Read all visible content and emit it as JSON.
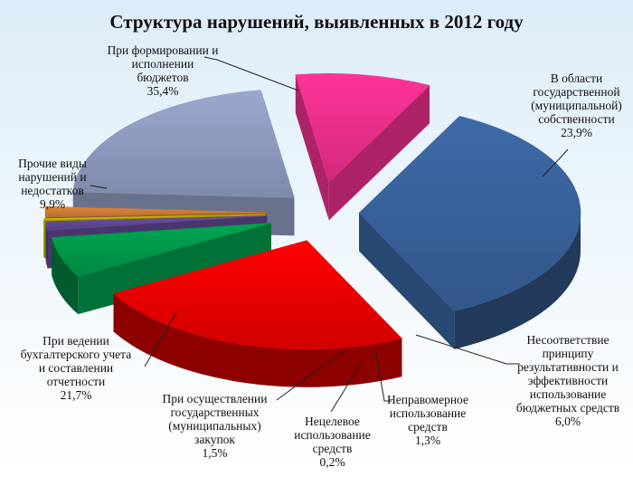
{
  "chart_data": {
    "type": "pie",
    "title": "Структура нарушений, выявленных в 2012 году",
    "slices": [
      {
        "name": "При формировании и исполнении бюджетов",
        "value": 35.4,
        "value_label": "35,4%",
        "color": "#3d6aa8"
      },
      {
        "name": "В области государственной (муниципальной) собственности",
        "value": 23.9,
        "value_label": "23,9%",
        "color": "#ff0000"
      },
      {
        "name": "Несоответствие принципу результативности и эффективности использование бюджетных средств",
        "value": 6.0,
        "value_label": "6,0%",
        "color": "#00a651"
      },
      {
        "name": "Неправомерное использование средств",
        "value": 1.3,
        "value_label": "1,3%",
        "color": "#6a4fa0"
      },
      {
        "name": "Нецелевое использование средств",
        "value": 0.2,
        "value_label": "0,2%",
        "color": "#d9d400"
      },
      {
        "name": "При осуществлении государственных (муниципальных) закупок",
        "value": 1.5,
        "value_label": "1,5%",
        "color": "#e2873a"
      },
      {
        "name": "При ведении бухгалтерского учета и составлении отчетности",
        "value": 21.7,
        "value_label": "21,7%",
        "color": "#9aa8cf"
      },
      {
        "name": "Прочие виды нарушений и недостатков",
        "value": 9.9,
        "value_label": "9,9%",
        "color": "#ff3399"
      }
    ]
  },
  "labels": [
    {
      "lines": [
        "При формировании и",
        "исполнении",
        "бюджетов"
      ]
    },
    {
      "lines": [
        "В области",
        "государственной",
        "(муниципальной)",
        "собственности"
      ]
    },
    {
      "lines": [
        "Несоответствие",
        "принципу",
        "результативности и",
        "эффективности",
        "использование",
        "бюджетных средств"
      ]
    },
    {
      "lines": [
        "Неправомерное",
        "использование",
        "средств"
      ]
    },
    {
      "lines": [
        "Нецелевое",
        "использование",
        "средств"
      ]
    },
    {
      "lines": [
        "При осуществлении",
        "государственных",
        "(муниципальных)",
        "закупок"
      ]
    },
    {
      "lines": [
        "При ведении",
        "бухгалтерского учета",
        "и составлении",
        "отчетности"
      ]
    },
    {
      "lines": [
        "Прочие виды",
        "нарушений и",
        "недостатков"
      ]
    }
  ]
}
